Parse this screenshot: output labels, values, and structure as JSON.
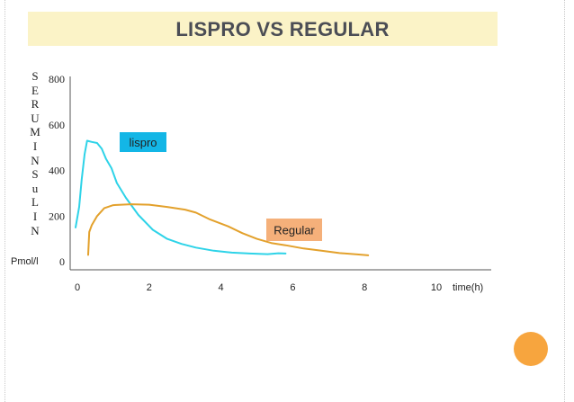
{
  "page": {
    "title": "LISPRO VS REGULAR"
  },
  "colors": {
    "lispro": "#2ed3e8",
    "regular": "#e3a12c",
    "lispro_label_bg": "#13b6e6",
    "regular_label_bg": "#f5b07a",
    "accent": "#f7a53e"
  },
  "chart_data": {
    "type": "line",
    "title": "LISPRO VS REGULAR",
    "ylabel": "SERUMINSuLIN",
    "ylabel_unit": "Pmol/l",
    "xlabel": "time(h)",
    "xlim": [
      0,
      10
    ],
    "ylim": [
      0,
      800
    ],
    "x_ticks": [
      0,
      2,
      4,
      6,
      8,
      10
    ],
    "y_ticks": [
      0,
      200,
      400,
      600,
      800
    ],
    "grid": false,
    "series": [
      {
        "name": "lispro",
        "color": "#2ed3e8",
        "points": [
          [
            -0.05,
            150
          ],
          [
            0.05,
            240
          ],
          [
            0.12,
            360
          ],
          [
            0.2,
            470
          ],
          [
            0.27,
            530
          ],
          [
            0.4,
            525
          ],
          [
            0.55,
            520
          ],
          [
            0.68,
            495
          ],
          [
            0.8,
            450
          ],
          [
            0.95,
            410
          ],
          [
            1.1,
            345
          ],
          [
            1.35,
            280
          ],
          [
            1.7,
            205
          ],
          [
            2.1,
            140
          ],
          [
            2.5,
            100
          ],
          [
            2.9,
            78
          ],
          [
            3.3,
            62
          ],
          [
            3.8,
            48
          ],
          [
            4.3,
            40
          ],
          [
            4.8,
            36
          ],
          [
            5.3,
            33
          ],
          [
            5.6,
            37
          ],
          [
            5.8,
            36
          ]
        ]
      },
      {
        "name": "Regular",
        "color": "#e3a12c",
        "points": [
          [
            0.3,
            30
          ],
          [
            0.33,
            130
          ],
          [
            0.4,
            160
          ],
          [
            0.55,
            200
          ],
          [
            0.75,
            235
          ],
          [
            1.0,
            248
          ],
          [
            1.5,
            252
          ],
          [
            2.0,
            250
          ],
          [
            2.5,
            240
          ],
          [
            3.0,
            228
          ],
          [
            3.3,
            215
          ],
          [
            3.7,
            185
          ],
          [
            4.2,
            155
          ],
          [
            4.6,
            125
          ],
          [
            5.0,
            100
          ],
          [
            5.4,
            82
          ],
          [
            5.8,
            72
          ],
          [
            6.3,
            58
          ],
          [
            6.8,
            48
          ],
          [
            7.3,
            38
          ],
          [
            7.8,
            32
          ],
          [
            8.1,
            28
          ]
        ]
      }
    ],
    "annotations": [
      {
        "text": "lispro",
        "series": "lispro"
      },
      {
        "text": "Regular",
        "series": "Regular"
      }
    ]
  }
}
